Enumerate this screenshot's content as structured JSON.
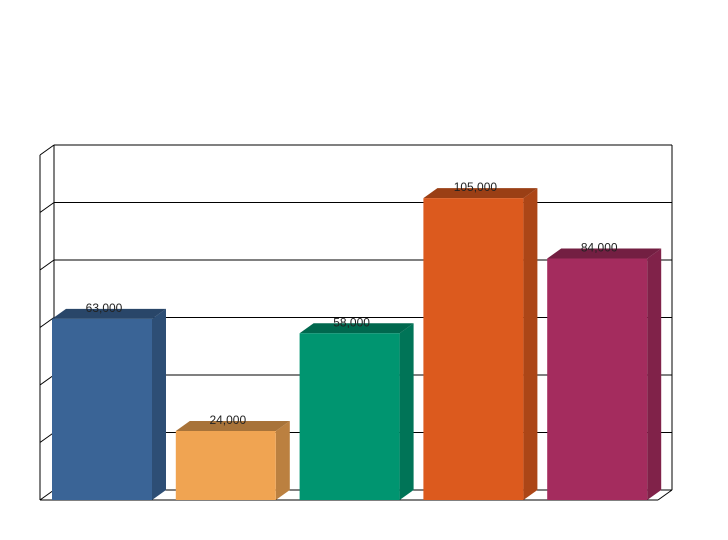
{
  "chart_data": {
    "type": "bar3d",
    "categories": [
      null,
      null,
      null,
      null,
      null
    ],
    "values": [
      63000,
      24000,
      58000,
      105000,
      84000
    ],
    "value_labels": [
      "63,000",
      "24,000",
      "58,000",
      "105,000",
      "84,000"
    ],
    "colors": [
      "#3a6496",
      "#f0a452",
      "#009570",
      "#dc5a1e",
      "#a42c5e"
    ],
    "ylim": [
      0,
      120000
    ],
    "yticks": [
      0,
      20000,
      40000,
      60000,
      80000,
      100000,
      120000
    ],
    "grid": true
  }
}
